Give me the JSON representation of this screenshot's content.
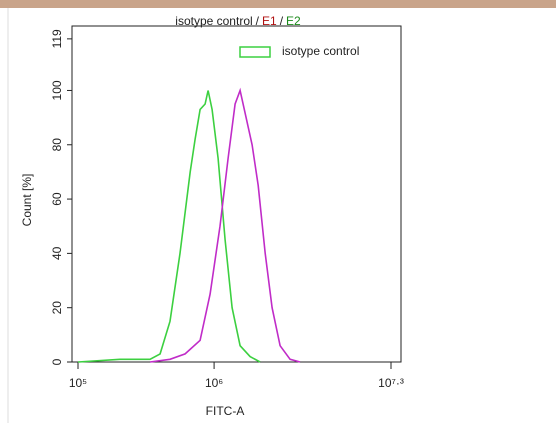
{
  "chart_data": {
    "type": "line",
    "title": [
      {
        "text": "isotype control",
        "color": "#222222"
      },
      {
        "text": "/",
        "color": "#222222"
      },
      {
        "text": "E1",
        "color": "#b01010"
      },
      {
        "text": "/",
        "color": "#222222"
      },
      {
        "text": "E2",
        "color": "#1a8a1a"
      }
    ],
    "x_label": "FITC-A",
    "y_label": "Count [%]",
    "xscale": "log",
    "xlim": [
      100000,
      19952623
    ],
    "xticks": [
      {
        "value": 100000,
        "label": "10⁵"
      },
      {
        "value": 1000000,
        "label": "10⁶"
      },
      {
        "value": 19952623,
        "label": "10⁷·³"
      }
    ],
    "ylim": [
      0,
      123
    ],
    "yticks": [
      0,
      20,
      40,
      60,
      80,
      100,
      119
    ],
    "legend": "upper right",
    "series": [
      {
        "name": "isotype control",
        "color": "#3cd040",
        "x": [
          100000,
          203700,
          338000,
          401000,
          474000,
          562000,
          667000,
          725000,
          789000,
          859000,
          904000,
          967000,
          1070000,
          1205000,
          1356000,
          1552000,
          1840000,
          2180000
        ],
        "values": [
          0,
          1,
          1,
          3,
          15,
          40,
          70,
          82,
          93,
          95,
          100,
          93,
          75,
          45,
          20,
          6,
          2,
          0
        ]
      },
      {
        "color": "#c02cc8",
        "x": [
          338000,
          474000,
          612000,
          789000,
          935000,
          1106000,
          1268000,
          1427000,
          1552000,
          1718000,
          1902000,
          2108000,
          2373000,
          2669000,
          3055000,
          3620000,
          4285000
        ],
        "values": [
          0,
          1,
          3,
          8,
          25,
          50,
          75,
          95,
          100,
          90,
          80,
          65,
          40,
          20,
          6,
          1,
          0
        ]
      }
    ]
  }
}
